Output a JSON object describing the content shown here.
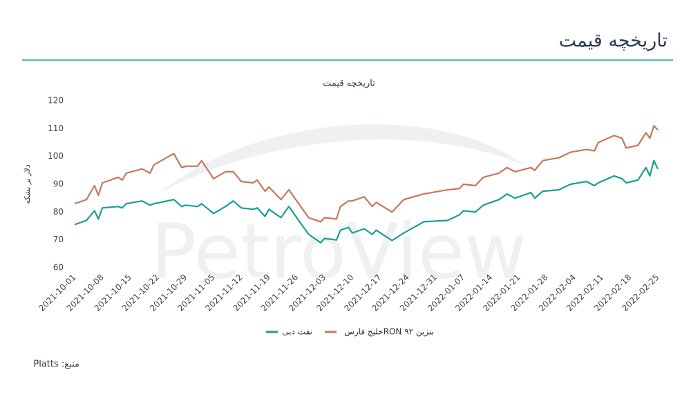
{
  "heading": "تاریخچه قیمت",
  "source": "منبع: Platts",
  "watermark": "PetroView",
  "chart_data": {
    "type": "line",
    "title": "تاریخچه قیمت",
    "y_label": "دلار بر بشکه",
    "x": [
      "2021-10-01",
      "2021-10-04",
      "2021-10-06",
      "2021-10-07",
      "2021-10-08",
      "2021-10-12",
      "2021-10-13",
      "2021-10-14",
      "2021-10-18",
      "2021-10-20",
      "2021-10-21",
      "2021-10-26",
      "2021-10-28",
      "2021-10-29",
      "2021-11-01",
      "2021-11-02",
      "2021-11-05",
      "2021-11-08",
      "2021-11-10",
      "2021-11-12",
      "2021-11-15",
      "2021-11-16",
      "2021-11-18",
      "2021-11-19",
      "2021-11-22",
      "2021-11-24",
      "2021-11-29",
      "2021-12-02",
      "2021-12-03",
      "2021-12-06",
      "2021-12-07",
      "2021-12-09",
      "2021-12-10",
      "2021-12-13",
      "2021-12-15",
      "2021-12-16",
      "2021-12-20",
      "2021-12-23",
      "2021-12-28",
      "2022-01-03",
      "2022-01-06",
      "2022-01-07",
      "2022-01-10",
      "2022-01-12",
      "2022-01-16",
      "2022-01-18",
      "2022-01-20",
      "2022-01-24",
      "2022-01-25",
      "2022-01-27",
      "2022-01-31",
      "2022-02-03",
      "2022-02-07",
      "2022-02-09",
      "2022-02-10",
      "2022-02-14",
      "2022-02-16",
      "2022-02-17",
      "2022-02-20",
      "2022-02-22",
      "2022-02-23",
      "2022-02-24",
      "2022-02-25"
    ],
    "series": [
      {
        "name": "نفت دبی",
        "color": "#1a9e8f",
        "values": [
          75.5,
          77,
          80.5,
          77.5,
          81.5,
          82,
          81.5,
          83,
          84,
          82.5,
          83,
          84.5,
          82,
          82.5,
          82,
          83,
          79.5,
          82,
          84,
          81.5,
          81,
          81.5,
          78.5,
          81,
          78,
          82,
          72,
          69,
          70.5,
          70,
          73.5,
          74.5,
          72.5,
          74,
          72,
          73.5,
          69.8,
          72.5,
          76.5,
          77,
          79,
          80.5,
          80,
          82.5,
          84.5,
          86.5,
          85,
          87,
          85,
          87.5,
          88,
          90,
          91,
          89.5,
          90.5,
          93,
          92,
          90.5,
          91.5,
          96,
          93,
          98.5,
          95.5
        ]
      },
      {
        "name": "بنزین ۹۲ RONخلیج فارس",
        "color": "#c8765a",
        "values": [
          83,
          84.5,
          89.5,
          86,
          90.5,
          92.5,
          91.5,
          94,
          95.5,
          94,
          97,
          101,
          96,
          96.5,
          96.5,
          98.5,
          92,
          94.5,
          94.5,
          91,
          90.5,
          91.5,
          87.5,
          89,
          84.5,
          88,
          78,
          76.5,
          78,
          77.5,
          82,
          84,
          84,
          85.5,
          82,
          83.5,
          80,
          84.5,
          86.5,
          88,
          88.5,
          90,
          89.5,
          92.5,
          94,
          96,
          94.5,
          96,
          95,
          98.5,
          99.5,
          101.5,
          102.5,
          102,
          105,
          107.5,
          106.5,
          103,
          104,
          108.5,
          106.5,
          111,
          109.5
        ]
      }
    ],
    "xlim": [
      "2021-10-01",
      "2022-02-25"
    ],
    "xticks": [
      "2021-10-01",
      "2021-10-08",
      "2021-10-15",
      "2021-10-22",
      "2021-10-29",
      "2021-11-05",
      "2021-11-12",
      "2021-11-19",
      "2021-11-26",
      "2021-12-03",
      "2021-12-10",
      "2021-12-17",
      "2021-12-24",
      "2021-12-31",
      "2022-01-07",
      "2022-01-14",
      "2022-01-21",
      "2022-01-28",
      "2022-02-04",
      "2022-02-11",
      "2022-02-18",
      "2022-02-25"
    ],
    "ylim": [
      60,
      120
    ],
    "yticks": [
      60,
      70,
      80,
      90,
      100,
      110,
      120
    ],
    "grid": false
  }
}
